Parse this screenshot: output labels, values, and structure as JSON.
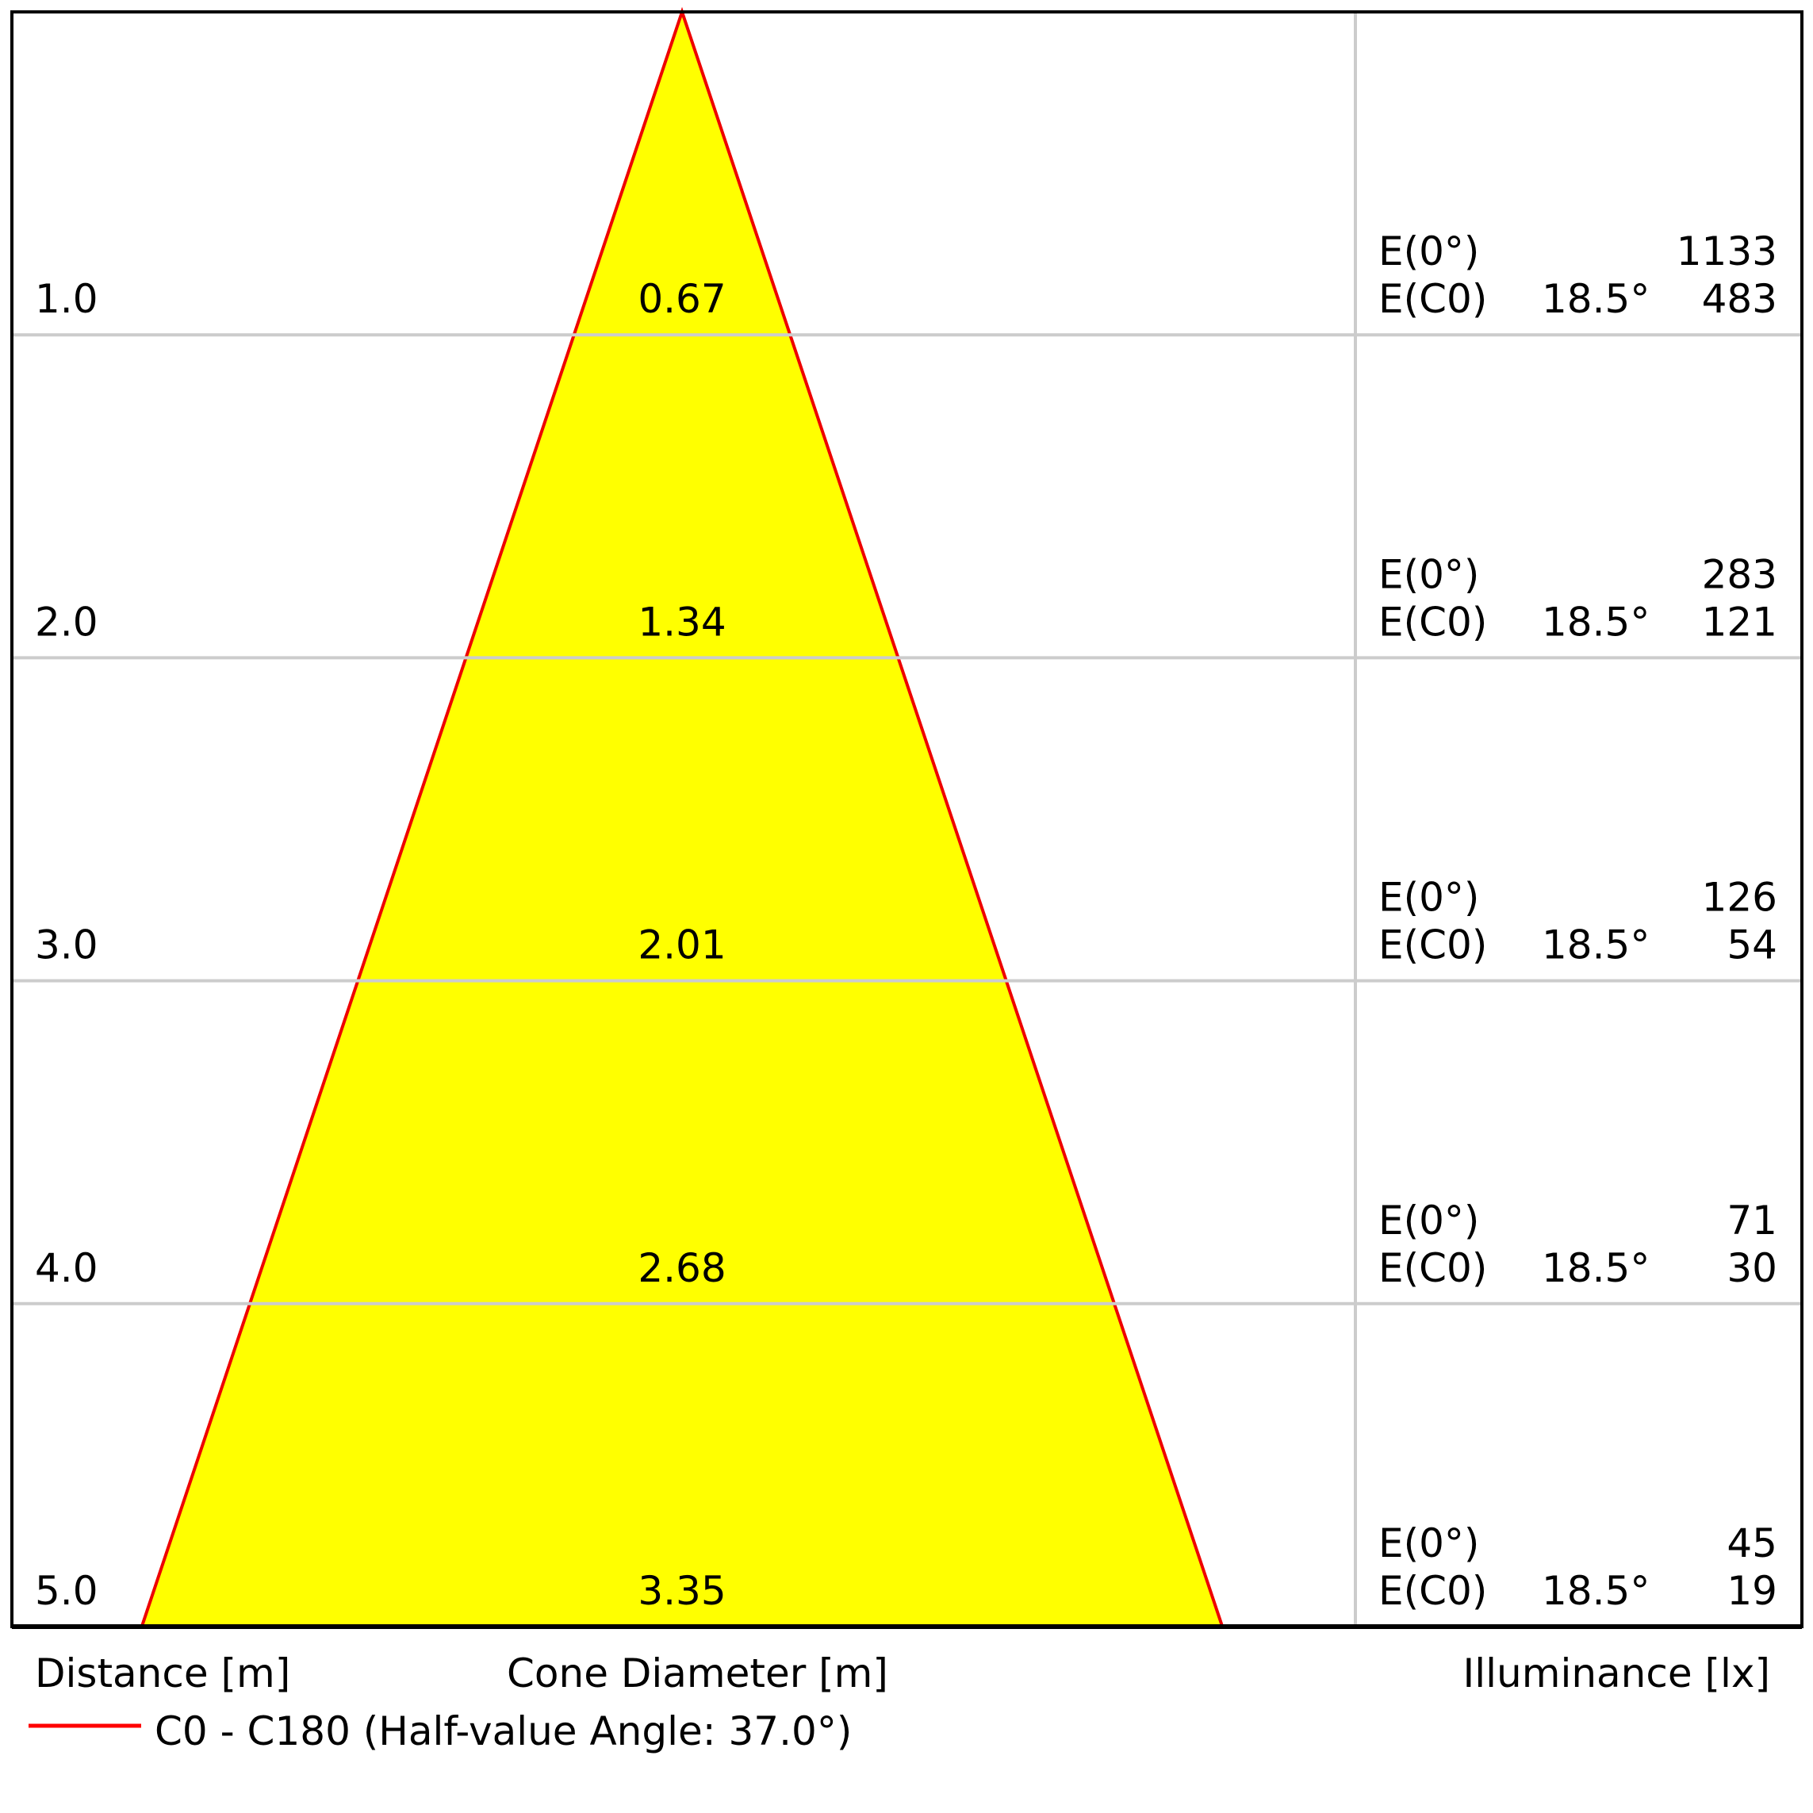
{
  "chart_data": {
    "type": "cone-diagram",
    "rows": [
      {
        "distance": "1.0",
        "diameter": "0.67",
        "e0_label": "E(0°)",
        "e0": "1133",
        "ec0_label": "E(C0)",
        "ec0_angle": "18.5°",
        "ec0": "483"
      },
      {
        "distance": "2.0",
        "diameter": "1.34",
        "e0_label": "E(0°)",
        "e0": "283",
        "ec0_label": "E(C0)",
        "ec0_angle": "18.5°",
        "ec0": "121"
      },
      {
        "distance": "3.0",
        "diameter": "2.01",
        "e0_label": "E(0°)",
        "e0": "126",
        "ec0_label": "E(C0)",
        "ec0_angle": "18.5°",
        "ec0": "54"
      },
      {
        "distance": "4.0",
        "diameter": "2.68",
        "e0_label": "E(0°)",
        "e0": "71",
        "ec0_label": "E(C0)",
        "ec0_angle": "18.5°",
        "ec0": "30"
      },
      {
        "distance": "5.0",
        "diameter": "3.35",
        "e0_label": "E(0°)",
        "e0": "45",
        "ec0_label": "E(C0)",
        "ec0_angle": "18.5°",
        "ec0": "19"
      }
    ],
    "half_value_angle_deg": 37.0,
    "labels": {
      "distance": "Distance [m]",
      "diameter": "Cone Diameter [m]",
      "illuminance": "Illuminance [lx]"
    },
    "legend": {
      "text": "C0 - C180 (Half-value Angle: 37.0°)",
      "color": "#ff0000"
    },
    "colors": {
      "cone_fill": "#ffff00",
      "cone_stroke": "#ee0000",
      "grid": "#cccccc",
      "border": "#000000"
    }
  }
}
